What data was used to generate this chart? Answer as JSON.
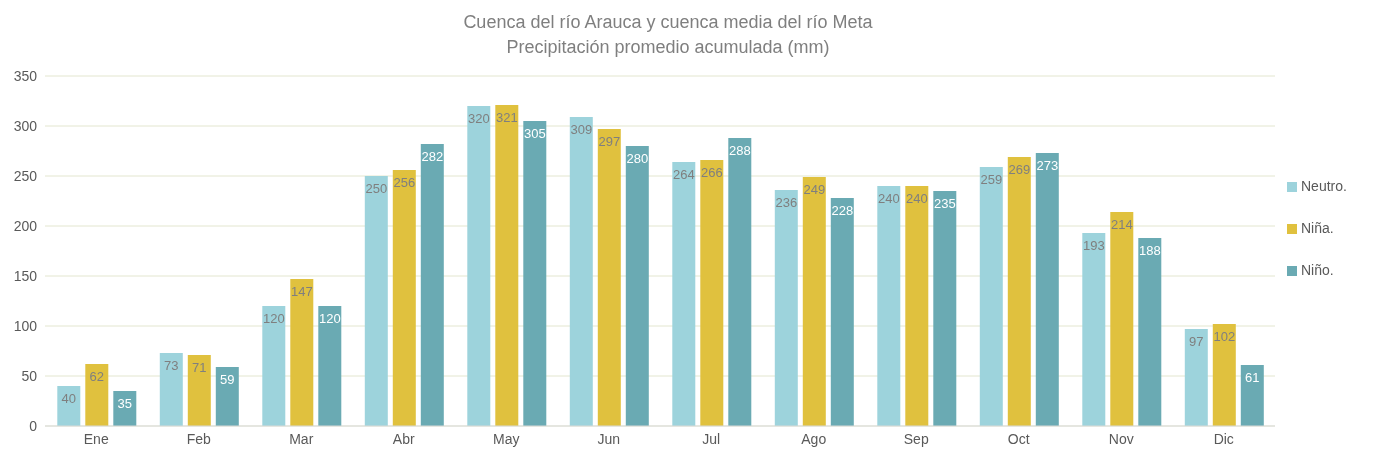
{
  "chart_data": {
    "type": "bar",
    "title": "Cuenca del río Arauca y cuenca media del río Meta",
    "subtitle": "Precipitación promedio acumulada (mm)",
    "categories": [
      "Ene",
      "Feb",
      "Mar",
      "Abr",
      "May",
      "Jun",
      "Jul",
      "Ago",
      "Sep",
      "Oct",
      "Nov",
      "Dic"
    ],
    "series": [
      {
        "name": "Neutro.",
        "color": "#9dd3dc",
        "values": [
          40,
          73,
          120,
          250,
          320,
          309,
          264,
          236,
          240,
          259,
          193,
          97
        ]
      },
      {
        "name": "Niña.",
        "color": "#e0c13e",
        "values": [
          62,
          71,
          147,
          256,
          321,
          297,
          266,
          249,
          240,
          269,
          214,
          102
        ]
      },
      {
        "name": "Niño.",
        "color": "#6aaab3",
        "values": [
          35,
          59,
          120,
          282,
          305,
          280,
          288,
          228,
          235,
          273,
          188,
          61
        ]
      }
    ],
    "ylim": [
      0,
      350
    ],
    "yticks": [
      0,
      50,
      100,
      150,
      200,
      250,
      300,
      350
    ],
    "grid": "y",
    "legend": "right",
    "data_labels": true
  }
}
